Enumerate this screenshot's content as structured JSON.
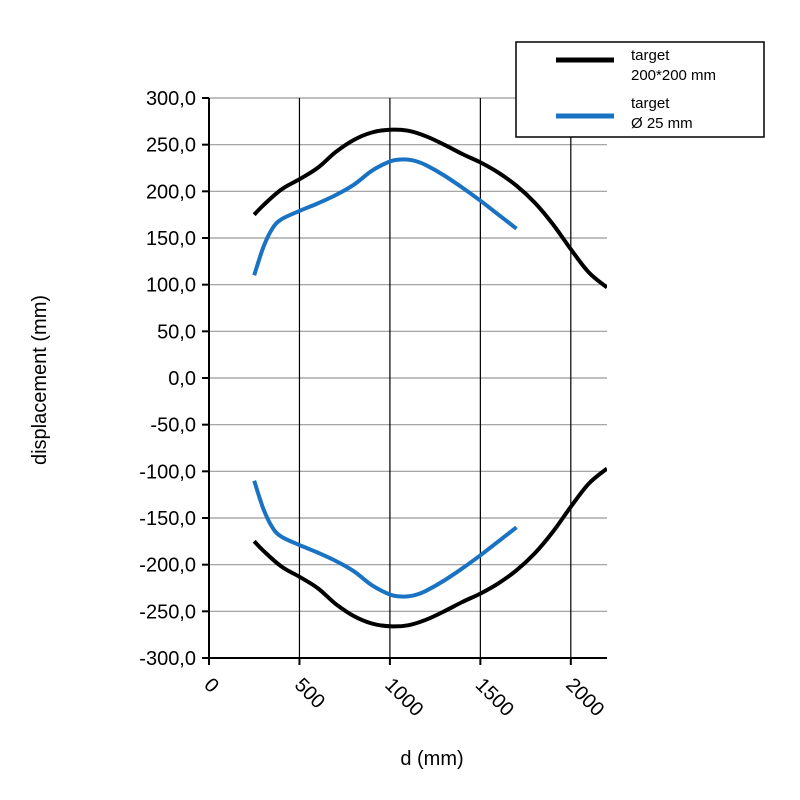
{
  "chart_data": {
    "type": "line",
    "title": "",
    "xlabel": "d (mm)",
    "ylabel": "displacement (mm)",
    "xlim": [
      0,
      2200
    ],
    "ylim": [
      -300,
      300
    ],
    "x_ticks": [
      0,
      500,
      1000,
      1500,
      2000
    ],
    "x_tick_labels": [
      "0",
      "500",
      "1000",
      "1500",
      "2000"
    ],
    "y_ticks": [
      300,
      250,
      200,
      150,
      100,
      50,
      0,
      -50,
      -100,
      -150,
      -200,
      -250,
      -300
    ],
    "y_tick_labels": [
      "300,0",
      "250,0",
      "200,0",
      "150,0",
      "100,0",
      "50,0",
      "0,0",
      "-50,0",
      "-100,0",
      "-150,0",
      "-200,0",
      "-250,0",
      "-300,0"
    ],
    "grid": {
      "vertical": true,
      "horizontal": true
    },
    "legend": {
      "position": "top-right",
      "entries": [
        {
          "lines": [
            "target",
            "200*200 mm"
          ],
          "color": "#000000"
        },
        {
          "lines": [
            "target",
            "Ø 25 mm"
          ],
          "color": "#1a73c2"
        }
      ]
    },
    "series": [
      {
        "group": "target 200*200 mm",
        "color": "#000000",
        "x": [
          250,
          300,
          400,
          500,
          600,
          700,
          800,
          900,
          1000,
          1100,
          1200,
          1300,
          1400,
          1500,
          1600,
          1700,
          1800,
          1900,
          2000,
          2100,
          2200
        ],
        "y": [
          175,
          185,
          202,
          213,
          225,
          242,
          255,
          263,
          266,
          265,
          259,
          250,
          240,
          231,
          220,
          206,
          188,
          165,
          138,
          113,
          97
        ]
      },
      {
        "group": "target 200*200 mm",
        "color": "#000000",
        "x": [
          250,
          300,
          400,
          500,
          600,
          700,
          800,
          900,
          1000,
          1100,
          1200,
          1300,
          1400,
          1500,
          1600,
          1700,
          1800,
          1900,
          2000,
          2100,
          2200
        ],
        "y": [
          -175,
          -185,
          -202,
          -213,
          -225,
          -242,
          -255,
          -263,
          -266,
          -265,
          -259,
          -250,
          -240,
          -231,
          -220,
          -206,
          -188,
          -165,
          -138,
          -113,
          -97
        ]
      },
      {
        "group": "target Ø 25 mm",
        "color": "#1a73c2",
        "x": [
          250,
          300,
          350,
          400,
          500,
          600,
          700,
          800,
          900,
          1000,
          1050,
          1100,
          1150,
          1200,
          1300,
          1400,
          1500,
          1600,
          1700
        ],
        "y": [
          110,
          140,
          160,
          170,
          179,
          187,
          196,
          207,
          222,
          232,
          234,
          234,
          232,
          228,
          217,
          204,
          190,
          175,
          160
        ]
      },
      {
        "group": "target Ø 25 mm",
        "color": "#1a73c2",
        "x": [
          250,
          300,
          350,
          400,
          500,
          600,
          700,
          800,
          900,
          1000,
          1050,
          1100,
          1150,
          1200,
          1300,
          1400,
          1500,
          1600,
          1700
        ],
        "y": [
          -110,
          -140,
          -160,
          -170,
          -179,
          -187,
          -196,
          -207,
          -222,
          -232,
          -234,
          -234,
          -232,
          -228,
          -217,
          -204,
          -190,
          -175,
          -160
        ]
      }
    ]
  }
}
